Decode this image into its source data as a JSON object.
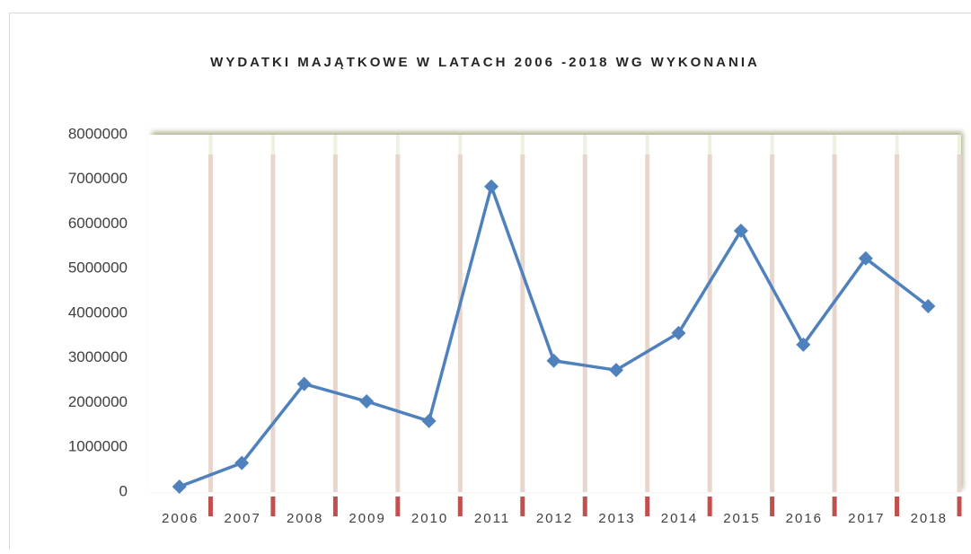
{
  "chart_data": {
    "type": "line",
    "title": "WYDATKI MAJĄTKOWE W LATACH 2006 -2018 WG WYKONANIA",
    "categories": [
      "2006",
      "2007",
      "2008",
      "2009",
      "2010",
      "2011",
      "2012",
      "2013",
      "2014",
      "2015",
      "2016",
      "2017",
      "2018"
    ],
    "series": [
      {
        "color": "#4f81bd",
        "values": [
          120000,
          650000,
          2420000,
          2030000,
          1590000,
          6840000,
          2940000,
          2730000,
          3560000,
          5850000,
          3300000,
          5230000,
          4160000
        ]
      }
    ],
    "ylim": [
      0,
      8000000
    ],
    "yticks": [
      0,
      1000000,
      2000000,
      3000000,
      4000000,
      5000000,
      6000000,
      7000000,
      8000000
    ],
    "grid": false
  }
}
